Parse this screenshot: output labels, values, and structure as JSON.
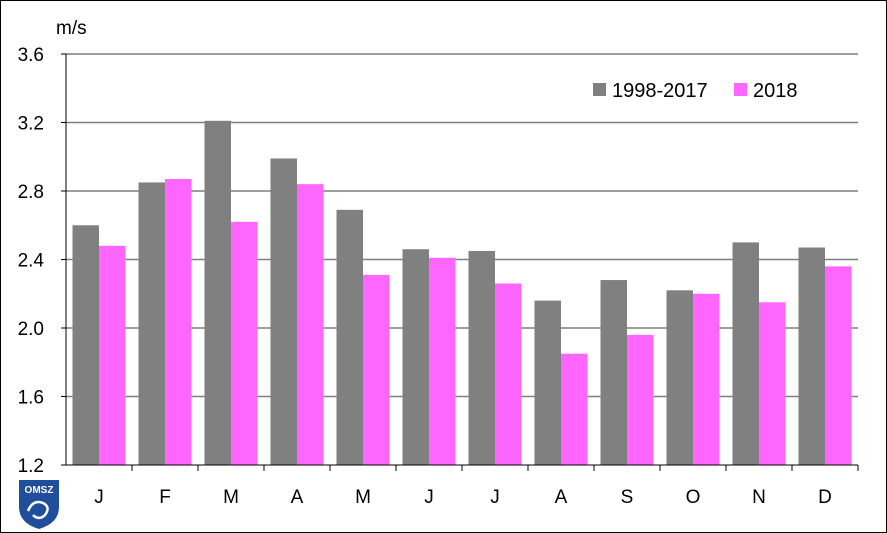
{
  "chart_data": {
    "type": "bar",
    "ylabel": "m/s",
    "ylim": [
      1.2,
      3.6
    ],
    "yticks": [
      "1.2",
      "1.6",
      "2.0",
      "2.4",
      "2.8",
      "3.2",
      "3.6"
    ],
    "categories": [
      "J",
      "F",
      "M",
      "A",
      "M",
      "J",
      "J",
      "A",
      "S",
      "O",
      "N",
      "D"
    ],
    "grid": true,
    "legend_position": "top-right",
    "series": [
      {
        "name": "1998-2017",
        "color": "#808080",
        "values": [
          2.6,
          2.85,
          3.21,
          2.99,
          2.69,
          2.46,
          2.45,
          2.16,
          2.28,
          2.22,
          2.5,
          2.47
        ]
      },
      {
        "name": "2018",
        "color": "#ff66ff",
        "values": [
          2.48,
          2.87,
          2.62,
          2.84,
          2.31,
          2.41,
          2.26,
          1.85,
          1.96,
          2.2,
          2.15,
          2.36
        ]
      }
    ]
  },
  "logo": {
    "text": "OMSZ",
    "color": "#1f4e9c"
  }
}
